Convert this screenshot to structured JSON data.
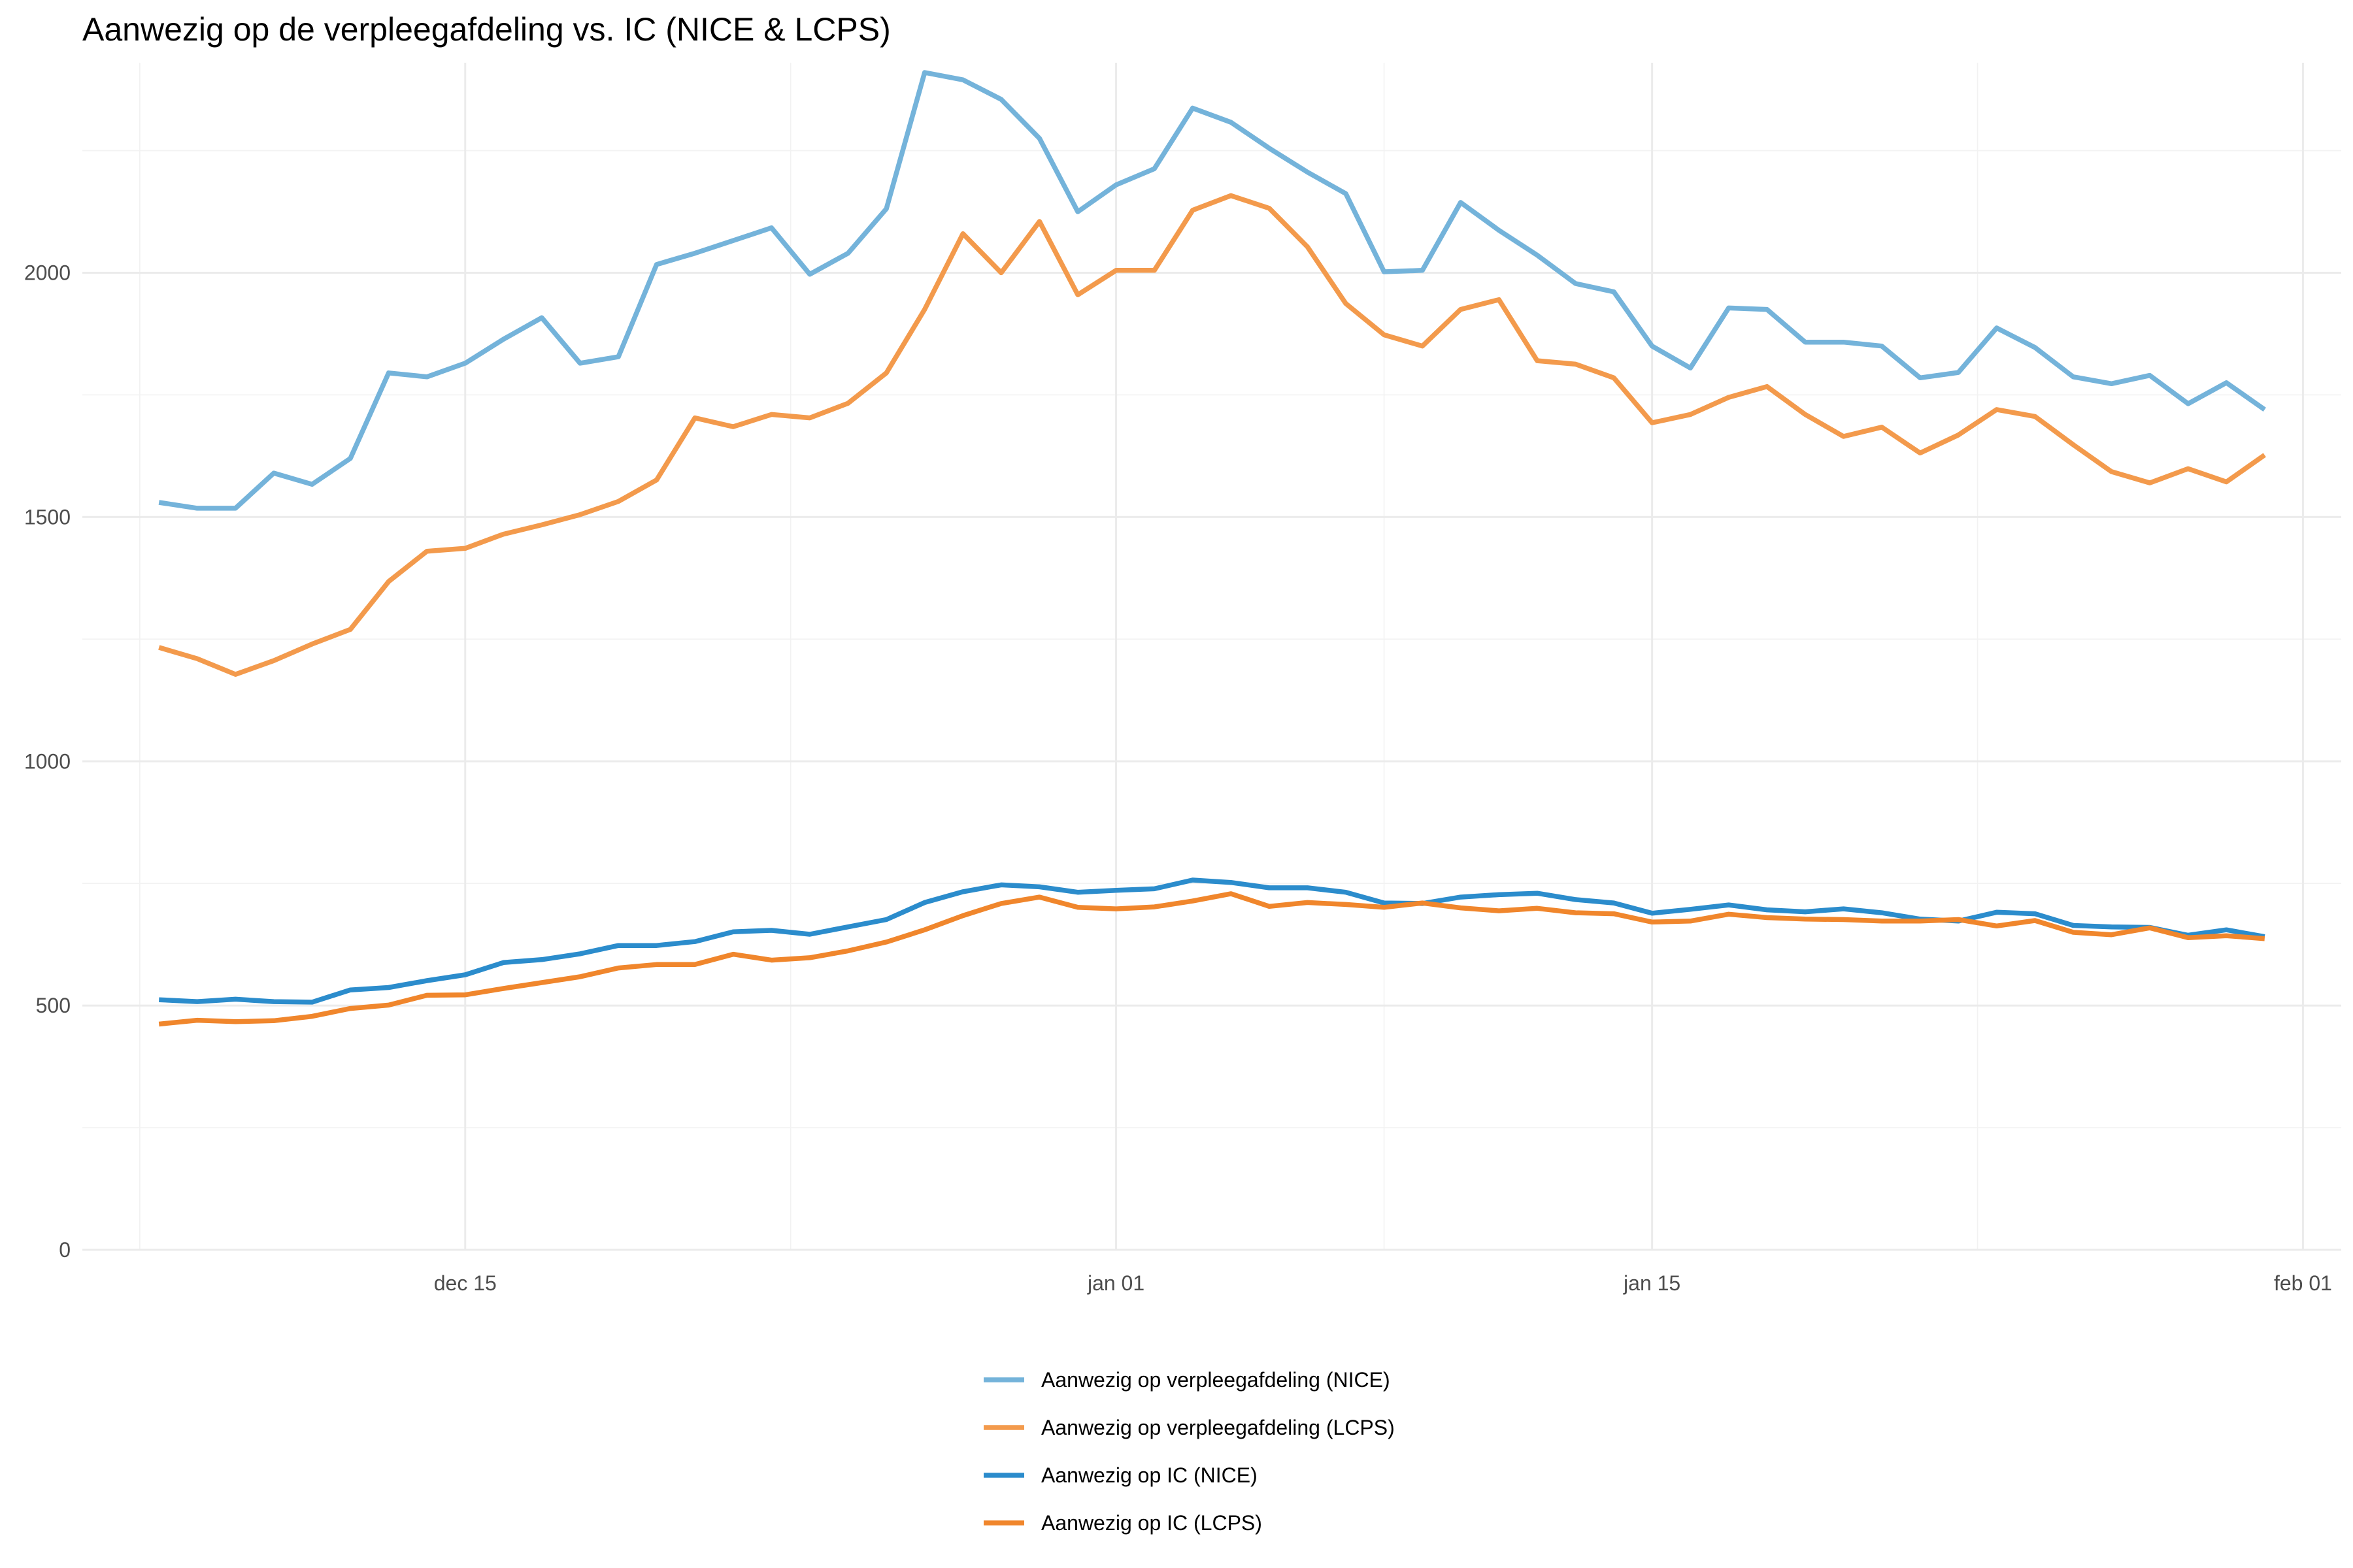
{
  "chart_data": {
    "type": "line",
    "title": "Aanwezig op de verpleegafdeling vs. IC (NICE & LCPS)",
    "xlabel": "",
    "ylabel": "",
    "x_start": "2020-12-07",
    "x_end": "2021-02-01",
    "xlim": [
      "2020-12-05",
      "2021-02-02"
    ],
    "ylim": [
      0,
      2430
    ],
    "y_ticks": [
      0,
      500,
      1000,
      1500,
      2000
    ],
    "x_ticks": [
      {
        "date": "2020-12-15",
        "label": "dec 15"
      },
      {
        "date": "2021-01-01",
        "label": "jan 01"
      },
      {
        "date": "2021-01-15",
        "label": "jan 15"
      },
      {
        "date": "2021-02-01",
        "label": "feb 01"
      }
    ],
    "grid": true,
    "legend_position": "bottom",
    "series": [
      {
        "name": "Aanwezig op verpleegafdeling (NICE)",
        "color": "#74b3da",
        "values": [
          1530,
          1518,
          1518,
          1590,
          1567,
          1620,
          1795,
          1787,
          1815,
          1864,
          1908,
          1815,
          1828,
          2017,
          2040,
          2066,
          2092,
          1997,
          2040,
          2131,
          2410,
          2395,
          2355,
          2275,
          2125,
          2180,
          2213,
          2337,
          2308,
          2255,
          2206,
          2162,
          2002,
          2005,
          2144,
          2087,
          2036,
          1978,
          1961,
          1850,
          1805,
          1928,
          1925,
          1858,
          1858,
          1850,
          1785,
          1796,
          1887,
          1847,
          1787,
          1773,
          1790,
          1732,
          1775,
          1720
        ]
      },
      {
        "name": "Aanwezig op verpleegafdeling (LCPS)",
        "color": "#f39a4c",
        "values": [
          1233,
          1210,
          1178,
          1206,
          1240,
          1270,
          1368,
          1430,
          1436,
          1465,
          1484,
          1505,
          1532,
          1576,
          1703,
          1685,
          1710,
          1703,
          1733,
          1795,
          1925,
          2080,
          2000,
          2105,
          1955,
          2005,
          2005,
          2128,
          2158,
          2132,
          2053,
          1937,
          1873,
          1850,
          1925,
          1945,
          1820,
          1813,
          1785,
          1693,
          1710,
          1745,
          1767,
          1710,
          1665,
          1684,
          1631,
          1668,
          1720,
          1706,
          1648,
          1593,
          1570,
          1599,
          1572,
          1627
        ]
      },
      {
        "name": "Aanwezig op IC (NICE)",
        "color": "#2b8ccc",
        "values": [
          512,
          508,
          513,
          508,
          507,
          532,
          537,
          551,
          563,
          588,
          594,
          606,
          623,
          623,
          631,
          651,
          654,
          646,
          661,
          676,
          711,
          733,
          747,
          743,
          732,
          736,
          739,
          757,
          752,
          741,
          741,
          732,
          710,
          709,
          722,
          727,
          730,
          717,
          710,
          689,
          697,
          706,
          696,
          692,
          698,
          690,
          677,
          673,
          691,
          688,
          664,
          661,
          660,
          644,
          655,
          641
        ]
      },
      {
        "name": "Aanwezig op IC (LCPS)",
        "color": "#f0862c",
        "values": [
          462,
          470,
          467,
          469,
          478,
          494,
          501,
          521,
          522,
          535,
          547,
          559,
          577,
          584,
          584,
          605,
          593,
          598,
          612,
          630,
          655,
          684,
          709,
          722,
          701,
          698,
          702,
          714,
          729,
          703,
          711,
          707,
          701,
          710,
          700,
          694,
          699,
          690,
          688,
          671,
          673,
          687,
          680,
          677,
          676,
          673,
          673,
          676,
          663,
          674,
          650,
          645,
          659,
          639,
          643,
          637
        ]
      }
    ]
  }
}
